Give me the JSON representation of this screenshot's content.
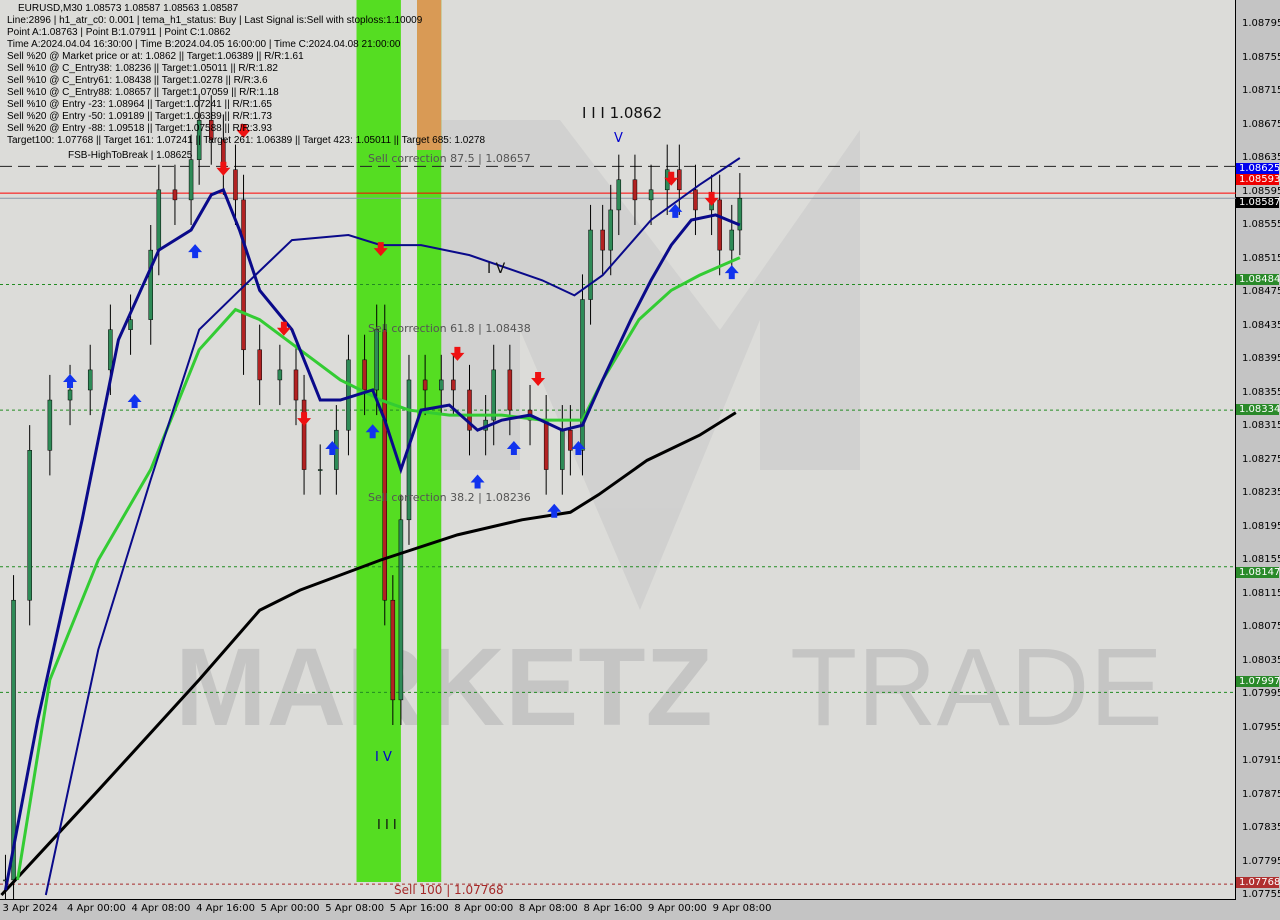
{
  "header": {
    "symbol_line": "EURUSD,M30  1.08573 1.08587 1.08563 1.08587",
    "lines": [
      "Line:2896 | h1_atr_c0: 0.001 | tema_h1_status: Buy | Last Signal is:Sell with stoploss:1.10009",
      "Point A:1.08763 | Point B:1.07911 | Point C:1.0862",
      "Time A:2024.04.04 16:30:00 | Time B:2024.04.05 16:00:00 | Time C:2024.04.08 21:00:00",
      "Sell %20 @ Market price or at: 1.0862 || Target:1.06389 || R/R:1.61",
      "Sell %10 @ C_Entry38: 1.08236 || Target:1.05011 || R/R:1.82",
      "Sell %10 @ C_Entry61: 1.08438 || Target:1.0278 || R/R:3.6",
      "Sell %10 @ C_Entry88: 1.08657 || Target:1.07059 || R/R:1.18",
      "Sell %10 @ Entry -23: 1.08964 || Target:1.07241 || R/R:1.65",
      "Sell %20 @ Entry -50: 1.09189 || Target:1.06389 || R/R:1.73",
      "Sell %20 @ Entry -88: 1.09518 || Target:1.07588 || R/R:3.93",
      "Target100: 1.07768 || Target 161: 1.07241 || Target 261: 1.06389 || Target 423: 1.05011 || Target 685: 1.0278"
    ]
  },
  "annotations": {
    "fsb": "FSB-HighToBreak | 1.08625",
    "wave3": "I I I 1.0862",
    "wave5": "V",
    "wave4": "I V",
    "wave3_low": "I I I",
    "wave4_low": "I V",
    "sell_corr_875": "Sell correction 87.5 | 1.08657",
    "sell_corr_618": "Sell correction 61.8 | 1.08438",
    "sell_corr_382": "Sell correction 38.2 | 1.08236",
    "sell_100": "Sell 100 | 1.07768",
    "watermark_left": "MARKETZ",
    "watermark_right": "TRADE"
  },
  "chart_data": {
    "type": "candlestick",
    "symbol": "EURUSD",
    "timeframe": "M30",
    "ylim": [
      1.07735,
      1.0882
    ],
    "y_ticks": [
      "1.08795",
      "1.08755",
      "1.08715",
      "1.08675",
      "1.08635",
      "1.08595",
      "1.08555",
      "1.08515",
      "1.08475",
      "1.08435",
      "1.08395",
      "1.08355",
      "1.08315",
      "1.08275",
      "1.08235",
      "1.08195",
      "1.08155",
      "1.08115",
      "1.08075",
      "1.08035",
      "1.07995",
      "1.07955",
      "1.07915",
      "1.07875",
      "1.07835",
      "1.07795",
      "1.07755"
    ],
    "x_ticks": [
      "3 Apr 2024",
      "4 Apr 00:00",
      "4 Apr 08:00",
      "4 Apr 16:00",
      "5 Apr 00:00",
      "5 Apr 08:00",
      "5 Apr 16:00",
      "8 Apr 00:00",
      "8 Apr 08:00",
      "8 Apr 16:00",
      "9 Apr 00:00",
      "9 Apr 08:00"
    ],
    "x_tick_times": [
      "3 Apr 16:00",
      "4 Apr 00:00",
      "4 Apr 08:00",
      "4 Apr 16:00",
      "5 Apr 00:00",
      "5 Apr 08:00",
      "5 Apr 16:00",
      "8 Apr 00:00",
      "8 Apr 08:00",
      "8 Apr 16:00",
      "9 Apr 00:00",
      "9 Apr 08:00"
    ],
    "grid": false,
    "price": [
      [
        "3 Apr 16:30",
        1.07773
      ],
      [
        "3 Apr 17:30",
        1.08107
      ],
      [
        "3 Apr 19:30",
        1.08286
      ],
      [
        "3 Apr 22:00",
        1.08346
      ],
      [
        "4 Apr 00:30",
        1.08358
      ],
      [
        "4 Apr 03:00",
        1.08382
      ],
      [
        "4 Apr 05:30",
        1.0843
      ],
      [
        "4 Apr 08:00",
        1.08442
      ],
      [
        "4 Apr 10:30",
        1.08525
      ],
      [
        "4 Apr 11:30",
        1.08597
      ],
      [
        "4 Apr 13:30",
        1.08585
      ],
      [
        "4 Apr 15:30",
        1.08633
      ],
      [
        "4 Apr 16:30",
        1.0868
      ],
      [
        "4 Apr 18:00",
        1.08657
      ],
      [
        "4 Apr 19:30",
        1.08621
      ],
      [
        "4 Apr 21:00",
        1.08585
      ],
      [
        "4 Apr 22:00",
        1.08406
      ],
      [
        "5 Apr 00:00",
        1.0837
      ],
      [
        "5 Apr 02:30",
        1.08382
      ],
      [
        "5 Apr 04:30",
        1.08346
      ],
      [
        "5 Apr 05:30",
        1.08263
      ],
      [
        "5 Apr 07:30",
        1.08263
      ],
      [
        "5 Apr 09:30",
        1.0831
      ],
      [
        "5 Apr 11:00",
        1.08394
      ],
      [
        "5 Apr 13:00",
        1.08358
      ],
      [
        "5 Apr 14:30",
        1.0843
      ],
      [
        "5 Apr 15:30",
        1.08107
      ],
      [
        "5 Apr 16:30",
        1.07988
      ],
      [
        "5 Apr 17:30",
        1.08203
      ],
      [
        "5 Apr 18:30",
        1.0837
      ],
      [
        "5 Apr 20:30",
        1.08358
      ],
      [
        "5 Apr 22:30",
        1.0837
      ],
      [
        "8 Apr 00:00",
        1.08358
      ],
      [
        "8 Apr 02:00",
        1.0831
      ],
      [
        "8 Apr 04:00",
        1.08322
      ],
      [
        "8 Apr 05:00",
        1.08382
      ],
      [
        "8 Apr 07:00",
        1.08334
      ],
      [
        "8 Apr 09:30",
        1.08322
      ],
      [
        "8 Apr 11:30",
        1.08263
      ],
      [
        "8 Apr 13:30",
        1.0831
      ],
      [
        "8 Apr 14:30",
        1.08286
      ],
      [
        "8 Apr 16:00",
        1.08466
      ],
      [
        "8 Apr 17:00",
        1.08549
      ],
      [
        "8 Apr 18:30",
        1.08525
      ],
      [
        "8 Apr 19:30",
        1.08573
      ],
      [
        "8 Apr 20:30",
        1.08609
      ],
      [
        "8 Apr 22:30",
        1.08585
      ],
      [
        "9 Apr 00:30",
        1.08597
      ],
      [
        "9 Apr 02:30",
        1.08621
      ],
      [
        "9 Apr 04:00",
        1.08597
      ],
      [
        "9 Apr 06:00",
        1.08573
      ],
      [
        "9 Apr 08:00",
        1.08585
      ],
      [
        "9 Apr 09:00",
        1.08525
      ],
      [
        "9 Apr 10:30",
        1.08549
      ],
      [
        "9 Apr 11:30",
        1.08587
      ]
    ],
    "series": [
      {
        "color": "#000000",
        "width": 3,
        "points": [
          [
            "3 Apr 16:00",
            1.07755
          ],
          [
            "4 Apr 04:00",
            1.0788
          ],
          [
            "4 Apr 16:30",
            1.08012
          ],
          [
            "5 Apr 00:00",
            1.08095
          ],
          [
            "5 Apr 05:00",
            1.08119
          ],
          [
            "5 Apr 15:00",
            1.08155
          ],
          [
            "8 Apr 00:30",
            1.08185
          ],
          [
            "8 Apr 08:30",
            1.08203
          ],
          [
            "8 Apr 14:30",
            1.08212
          ],
          [
            "8 Apr 18:00",
            1.08233
          ],
          [
            "9 Apr 00:00",
            1.08274
          ],
          [
            "9 Apr 06:30",
            1.08304
          ],
          [
            "9 Apr 11:00",
            1.08331
          ]
        ]
      },
      {
        "color": "#33cc33",
        "width": 3,
        "points": [
          [
            "3 Apr 18:00",
            1.07773
          ],
          [
            "3 Apr 22:00",
            1.08012
          ],
          [
            "4 Apr 04:00",
            1.08155
          ],
          [
            "4 Apr 10:30",
            1.08263
          ],
          [
            "4 Apr 16:30",
            1.08406
          ],
          [
            "4 Apr 21:00",
            1.08454
          ],
          [
            "5 Apr 00:00",
            1.08442
          ],
          [
            "5 Apr 05:00",
            1.08406
          ],
          [
            "5 Apr 10:00",
            1.0837
          ],
          [
            "5 Apr 15:00",
            1.08346
          ],
          [
            "5 Apr 18:30",
            1.08334
          ],
          [
            "5 Apr 23:30",
            1.08328
          ],
          [
            "8 Apr 06:00",
            1.08328
          ],
          [
            "8 Apr 11:00",
            1.08322
          ],
          [
            "8 Apr 16:00",
            1.08322
          ],
          [
            "8 Apr 18:30",
            1.0837
          ],
          [
            "8 Apr 23:00",
            1.08442
          ],
          [
            "9 Apr 03:00",
            1.08477
          ],
          [
            "9 Apr 06:30",
            1.08495
          ],
          [
            "9 Apr 11:30",
            1.08516
          ]
        ]
      },
      {
        "color": "#0a0a8a",
        "width": 3,
        "points": [
          [
            "3 Apr 16:30",
            1.07761
          ],
          [
            "3 Apr 20:30",
            1.07964
          ],
          [
            "4 Apr 02:00",
            1.08203
          ],
          [
            "4 Apr 06:30",
            1.08418
          ],
          [
            "4 Apr 11:30",
            1.08525
          ],
          [
            "4 Apr 15:30",
            1.08549
          ],
          [
            "4 Apr 18:00",
            1.08591
          ],
          [
            "4 Apr 19:30",
            1.08597
          ],
          [
            "4 Apr 21:30",
            1.08549
          ],
          [
            "5 Apr 00:00",
            1.08477
          ],
          [
            "5 Apr 04:00",
            1.0843
          ],
          [
            "5 Apr 07:30",
            1.08346
          ],
          [
            "5 Apr 10:00",
            1.08346
          ],
          [
            "5 Apr 14:00",
            1.08358
          ],
          [
            "5 Apr 15:30",
            1.08322
          ],
          [
            "5 Apr 17:30",
            1.08263
          ],
          [
            "5 Apr 20:00",
            1.08334
          ],
          [
            "5 Apr 23:30",
            1.0834
          ],
          [
            "8 Apr 03:00",
            1.0831
          ],
          [
            "8 Apr 06:00",
            1.08322
          ],
          [
            "8 Apr 09:30",
            1.08328
          ],
          [
            "8 Apr 13:30",
            1.0831
          ],
          [
            "8 Apr 16:00",
            1.08316
          ],
          [
            "8 Apr 18:30",
            1.0837
          ],
          [
            "8 Apr 22:00",
            1.08442
          ],
          [
            "9 Apr 00:30",
            1.08489
          ],
          [
            "9 Apr 03:00",
            1.08531
          ],
          [
            "9 Apr 05:30",
            1.08561
          ],
          [
            "9 Apr 08:30",
            1.08567
          ],
          [
            "9 Apr 11:30",
            1.08555
          ]
        ]
      },
      {
        "color": "#0a0a8a",
        "width": 2,
        "points": [
          [
            "3 Apr 21:30",
            1.07755
          ],
          [
            "4 Apr 04:00",
            1.08048
          ],
          [
            "4 Apr 10:30",
            1.08251
          ],
          [
            "4 Apr 16:30",
            1.0843
          ],
          [
            "4 Apr 21:30",
            1.08477
          ],
          [
            "5 Apr 04:00",
            1.08537
          ],
          [
            "5 Apr 11:00",
            1.08543
          ],
          [
            "5 Apr 15:00",
            1.08531
          ],
          [
            "5 Apr 20:00",
            1.08531
          ],
          [
            "8 Apr 02:00",
            1.08519
          ],
          [
            "8 Apr 11:00",
            1.08489
          ],
          [
            "8 Apr 15:00",
            1.08471
          ],
          [
            "8 Apr 18:30",
            1.08495
          ],
          [
            "9 Apr 00:30",
            1.08561
          ],
          [
            "9 Apr 06:30",
            1.08603
          ],
          [
            "9 Apr 11:30",
            1.08635
          ]
        ]
      }
    ],
    "levels": [
      {
        "price": "1.08625",
        "color": "#0000ff",
        "style": "dashed-black",
        "badge": true
      },
      {
        "price": "1.08593",
        "color": "#ff0000",
        "style": "solid",
        "badge": true
      },
      {
        "price": "1.08587",
        "color": "#000000",
        "style": "solid-gray",
        "badge": true
      },
      {
        "price": "1.08484",
        "color": "#228b22",
        "style": "dotted",
        "badge": true
      },
      {
        "price": "1.08334",
        "color": "#228b22",
        "style": "dotted",
        "badge": true
      },
      {
        "price": "1.08147",
        "color": "#228b22",
        "style": "dotted",
        "badge": true
      },
      {
        "price": "1.07997",
        "color": "#228b22",
        "style": "dotted",
        "badge": true
      },
      {
        "price": "1.07768",
        "color": "#a52a2a",
        "style": "dotted",
        "badge": true
      }
    ],
    "zones": [
      {
        "from": "5 Apr 12:00",
        "to": "5 Apr 17:30",
        "color": "#55dd22"
      },
      {
        "from": "5 Apr 19:30",
        "to": "5 Apr 22:30",
        "color": "#55dd22"
      },
      {
        "from": "5 Apr 19:30",
        "to": "5 Apr 22:30",
        "color": "#d99a55",
        "top_only": true
      }
    ],
    "signals": [
      {
        "t": "4 Apr 19:30",
        "p": 1.08621,
        "type": "sell"
      },
      {
        "t": "4 Apr 22:00",
        "p": 1.08666,
        "type": "sell"
      },
      {
        "t": "5 Apr 03:00",
        "p": 1.0843,
        "type": "sell"
      },
      {
        "t": "5 Apr 05:30",
        "p": 1.08322,
        "type": "sell"
      },
      {
        "t": "5 Apr 15:00",
        "p": 1.08525,
        "type": "sell"
      },
      {
        "t": "8 Apr 00:30",
        "p": 1.084,
        "type": "sell"
      },
      {
        "t": "8 Apr 10:30",
        "p": 1.0837,
        "type": "sell"
      },
      {
        "t": "9 Apr 03:00",
        "p": 1.08609,
        "type": "sell"
      },
      {
        "t": "9 Apr 08:00",
        "p": 1.08585,
        "type": "sell"
      },
      {
        "t": "4 Apr 00:30",
        "p": 1.0837,
        "type": "buy"
      },
      {
        "t": "4 Apr 08:30",
        "p": 1.08346,
        "type": "buy"
      },
      {
        "t": "4 Apr 16:00",
        "p": 1.08525,
        "type": "buy"
      },
      {
        "t": "5 Apr 09:00",
        "p": 1.0829,
        "type": "buy"
      },
      {
        "t": "5 Apr 14:00",
        "p": 1.0831,
        "type": "buy"
      },
      {
        "t": "8 Apr 03:00",
        "p": 1.0825,
        "type": "buy"
      },
      {
        "t": "8 Apr 07:30",
        "p": 1.0829,
        "type": "buy"
      },
      {
        "t": "8 Apr 12:30",
        "p": 1.08215,
        "type": "buy"
      },
      {
        "t": "8 Apr 15:30",
        "p": 1.0829,
        "type": "buy"
      },
      {
        "t": "9 Apr 03:30",
        "p": 1.08573,
        "type": "buy"
      },
      {
        "t": "9 Apr 10:30",
        "p": 1.085,
        "type": "buy"
      }
    ]
  },
  "axis_badges": {
    "b1": "1.08625",
    "b2": "1.08593",
    "b3": "1.08587",
    "b4": "1.08484",
    "b5": "1.08334",
    "b6": "1.08147",
    "b7": "1.07997",
    "b8": "1.07768"
  }
}
